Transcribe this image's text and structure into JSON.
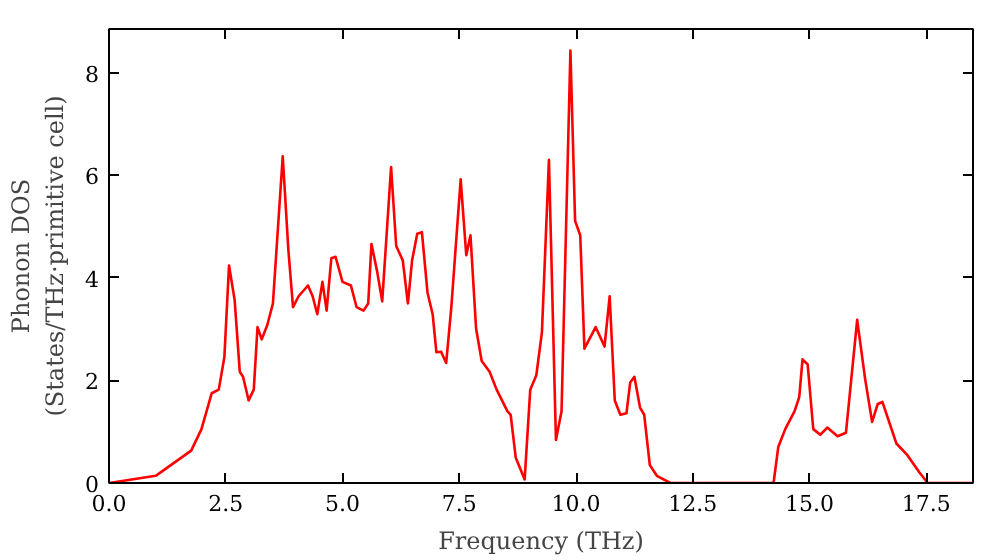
{
  "chart_data": {
    "type": "line",
    "xlabel": "Frequency (THz)",
    "ylabel": "Phonon DOS\n(States/THz·primitive cell)",
    "xlim": [
      0,
      18.5
    ],
    "ylim": [
      0,
      8.85
    ],
    "xticks": [
      {
        "value": 0,
        "label": "0.0"
      },
      {
        "value": 2.5,
        "label": "2.5"
      },
      {
        "value": 5,
        "label": "5.0"
      },
      {
        "value": 7.5,
        "label": "7.5"
      },
      {
        "value": 10,
        "label": "10.0"
      },
      {
        "value": 12.5,
        "label": "12.5"
      },
      {
        "value": 15,
        "label": "15.0"
      },
      {
        "value": 17.5,
        "label": "17.5"
      }
    ],
    "yticks": [
      0,
      2,
      4,
      6,
      8
    ],
    "grid": false,
    "marker": "none",
    "line_style": "solid",
    "series": [
      {
        "color": "#ff0000",
        "x": [
          0,
          1.0,
          1.76,
          1.98,
          2.2,
          2.35,
          2.47,
          2.57,
          2.69,
          2.8,
          2.87,
          2.99,
          3.1,
          3.18,
          3.27,
          3.39,
          3.51,
          3.72,
          3.84,
          3.94,
          4.06,
          4.26,
          4.36,
          4.46,
          4.57,
          4.66,
          4.76,
          4.85,
          5.0,
          5.18,
          5.3,
          5.45,
          5.55,
          5.62,
          5.74,
          5.85,
          6.04,
          6.15,
          6.29,
          6.4,
          6.49,
          6.6,
          6.7,
          6.82,
          6.93,
          7.01,
          7.11,
          7.22,
          7.33,
          7.53,
          7.65,
          7.74,
          7.86,
          7.98,
          8.15,
          8.3,
          8.53,
          8.6,
          8.71,
          8.9,
          9.02,
          9.15,
          9.27,
          9.42,
          9.57,
          9.69,
          9.88,
          9.98,
          10.09,
          10.18,
          10.42,
          10.61,
          10.72,
          10.83,
          10.95,
          11.08,
          11.16,
          11.25,
          11.37,
          11.46,
          11.58,
          11.73,
          12.02,
          14.23,
          14.33,
          14.48,
          14.68,
          14.78,
          14.85,
          14.96,
          15.08,
          15.23,
          15.38,
          15.6,
          15.78,
          16.02,
          16.19,
          16.34,
          16.46,
          16.56,
          16.86,
          17.08,
          17.35,
          17.53,
          18.5
        ],
        "values": [
          0,
          0.14,
          0.63,
          1.05,
          1.75,
          1.82,
          2.45,
          4.24,
          3.57,
          2.17,
          2.07,
          1.61,
          1.82,
          3.04,
          2.8,
          3.08,
          3.5,
          6.37,
          4.55,
          3.43,
          3.64,
          3.85,
          3.64,
          3.29,
          3.92,
          3.36,
          4.38,
          4.41,
          3.92,
          3.85,
          3.43,
          3.36,
          3.5,
          4.66,
          4.13,
          3.54,
          6.16,
          4.62,
          4.34,
          3.5,
          4.34,
          4.86,
          4.89,
          3.71,
          3.29,
          2.55,
          2.56,
          2.34,
          3.43,
          5.92,
          4.44,
          4.83,
          3.01,
          2.38,
          2.17,
          1.82,
          1.4,
          1.33,
          0.49,
          0.07,
          1.82,
          2.1,
          2.94,
          6.3,
          0.84,
          1.4,
          8.43,
          5.11,
          4.83,
          2.62,
          3.04,
          2.66,
          3.64,
          1.61,
          1.33,
          1.36,
          1.96,
          2.07,
          1.47,
          1.33,
          0.35,
          0.14,
          0,
          0,
          0.7,
          1.05,
          1.4,
          1.68,
          2.41,
          2.31,
          1.05,
          0.94,
          1.08,
          0.91,
          0.98,
          3.18,
          2.03,
          1.19,
          1.54,
          1.58,
          0.77,
          0.56,
          0.21,
          0,
          0
        ]
      }
    ]
  }
}
